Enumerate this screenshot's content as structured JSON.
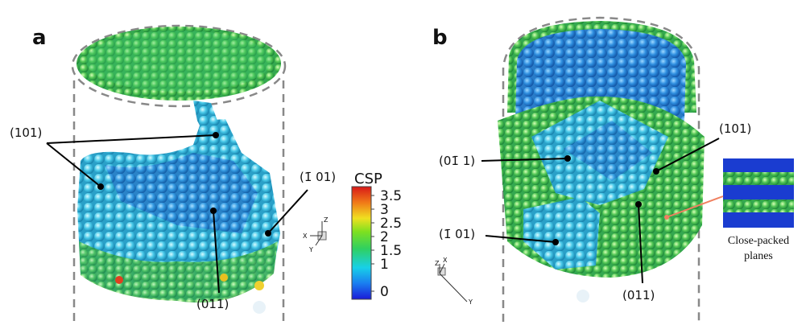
{
  "panels": [
    {
      "label": "a",
      "annotations": [
        "(101)",
        "(1̄ 01)",
        "(011)"
      ],
      "triad": [
        "Z",
        "X",
        "Y"
      ]
    },
    {
      "label": "b",
      "annotations": [
        "(101)",
        "(01̄ 1)",
        "(1̄ 01)",
        "(011)"
      ],
      "inset_caption": [
        "Close-packed",
        "planes"
      ],
      "triad": [
        "Z",
        "X",
        "Y"
      ]
    }
  ],
  "colorbar": {
    "title": "CSP",
    "lim": [
      0,
      3.5
    ],
    "ticks": [
      3.5,
      3,
      2.5,
      2,
      1.5,
      1,
      0
    ]
  }
}
